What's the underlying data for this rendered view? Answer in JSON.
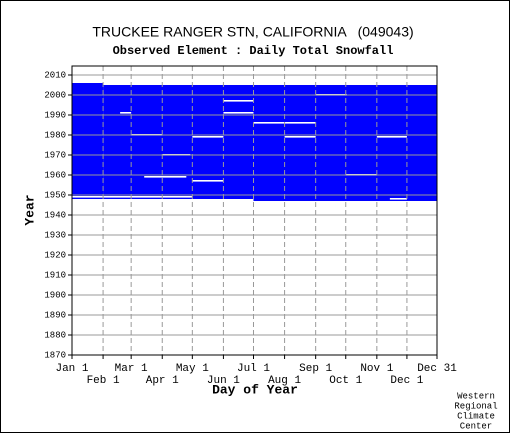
{
  "chart_data": {
    "type": "coverage",
    "title": "TRUCKEE RANGER STN, CALIFORNIA   (049043)",
    "subtitle": "Observed Element : Daily Total Snowfall",
    "xlabel": "Day of Year",
    "ylabel": "Year",
    "credit": [
      "Western",
      "Regional",
      "Climate",
      "Center"
    ],
    "color": "#0000ff",
    "xlim": [
      1,
      365
    ],
    "ylim": [
      1870,
      2014.5
    ],
    "xticks": [
      {
        "value": 1,
        "label": "Jan 1"
      },
      {
        "value": 32,
        "label": "Feb 1"
      },
      {
        "value": 60,
        "label": "Mar 1"
      },
      {
        "value": 91,
        "label": "Apr 1"
      },
      {
        "value": 121,
        "label": "May 1"
      },
      {
        "value": 152,
        "label": "Jun 1"
      },
      {
        "value": 182,
        "label": "Jul 1"
      },
      {
        "value": 213,
        "label": "Aug 1"
      },
      {
        "value": 244,
        "label": "Sep 1"
      },
      {
        "value": 274,
        "label": "Oct 1"
      },
      {
        "value": 305,
        "label": "Nov 1"
      },
      {
        "value": 335,
        "label": "Dec 1"
      },
      {
        "value": 365,
        "label": "Dec 31"
      }
    ],
    "yticks": [
      1870,
      1880,
      1890,
      1900,
      1910,
      1920,
      1930,
      1940,
      1950,
      1960,
      1970,
      1980,
      1990,
      2000,
      2010
    ],
    "coverage": [
      {
        "days": [
          1,
          32
        ],
        "years": [
          1948,
          2006
        ]
      },
      {
        "days": [
          32,
          182
        ],
        "years": [
          1948,
          2005
        ]
      },
      {
        "days": [
          182,
          365
        ],
        "years": [
          1947,
          2005
        ]
      }
    ],
    "gaps": [
      {
        "days": [
          60,
          91
        ],
        "year": 1980
      },
      {
        "days": [
          121,
          152
        ],
        "year": 1979
      },
      {
        "days": [
          213,
          244
        ],
        "year": 1979
      },
      {
        "days": [
          182,
          244
        ],
        "year": 1986
      },
      {
        "days": [
          305,
          335
        ],
        "year": 1979
      },
      {
        "days": [
          152,
          182
        ],
        "year": 1997
      },
      {
        "days": [
          152,
          182
        ],
        "year": 1991
      },
      {
        "days": [
          244,
          275
        ],
        "year": 2000
      },
      {
        "days": [
          91,
          119
        ],
        "year": 1970
      },
      {
        "days": [
          73,
          115
        ],
        "year": 1959
      },
      {
        "days": [
          121,
          152
        ],
        "year": 1957
      },
      {
        "days": [
          274,
          305
        ],
        "year": 1960
      },
      {
        "days": [
          49,
          60
        ],
        "year": 1991
      },
      {
        "days": [
          1,
          60
        ],
        "year": 1949
      },
      {
        "days": [
          60,
          121
        ],
        "year": 1949
      },
      {
        "days": [
          318,
          335
        ],
        "year": 1948
      }
    ]
  }
}
